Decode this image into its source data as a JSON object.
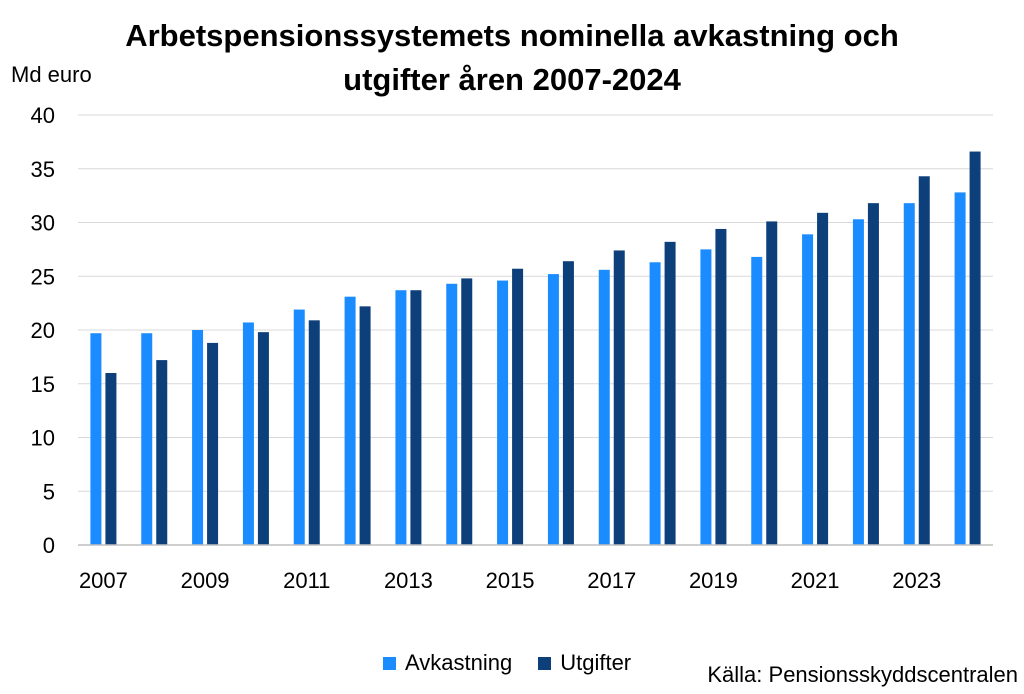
{
  "chart_data": {
    "type": "bar",
    "title_lines": [
      "Arbetspensionssystemets nominella avkastning och",
      "utgifter åren 2007-2024"
    ],
    "ylabel": "Md euro",
    "xlabel": "",
    "ylim": [
      0,
      40
    ],
    "yticks": [
      0,
      5,
      10,
      15,
      20,
      25,
      30,
      35,
      40
    ],
    "categories": [
      "2007",
      "2008",
      "2009",
      "2010",
      "2011",
      "2012",
      "2013",
      "2014",
      "2015",
      "2016",
      "2017",
      "2018",
      "2019",
      "2020",
      "2021",
      "2022",
      "2023",
      "2024"
    ],
    "xtick_labels": [
      "2007",
      "2009",
      "2011",
      "2013",
      "2015",
      "2017",
      "2019",
      "2021",
      "2023"
    ],
    "grid": true,
    "legend_position": "bottom",
    "series": [
      {
        "name": "Avkastning",
        "color": "#1a8cff",
        "values": [
          19.7,
          19.7,
          20.0,
          20.7,
          21.9,
          23.1,
          23.7,
          24.3,
          24.6,
          25.2,
          25.6,
          26.3,
          27.5,
          26.8,
          28.9,
          30.3,
          31.8,
          32.8
        ]
      },
      {
        "name": "Utgifter",
        "color": "#0d3f7a",
        "values": [
          16.0,
          17.2,
          18.8,
          19.8,
          20.9,
          22.2,
          23.7,
          24.8,
          25.7,
          26.4,
          27.4,
          28.2,
          29.4,
          30.1,
          30.9,
          31.8,
          34.3,
          36.6
        ]
      }
    ],
    "source": "Källa: Pensionsskyddscentralen"
  }
}
